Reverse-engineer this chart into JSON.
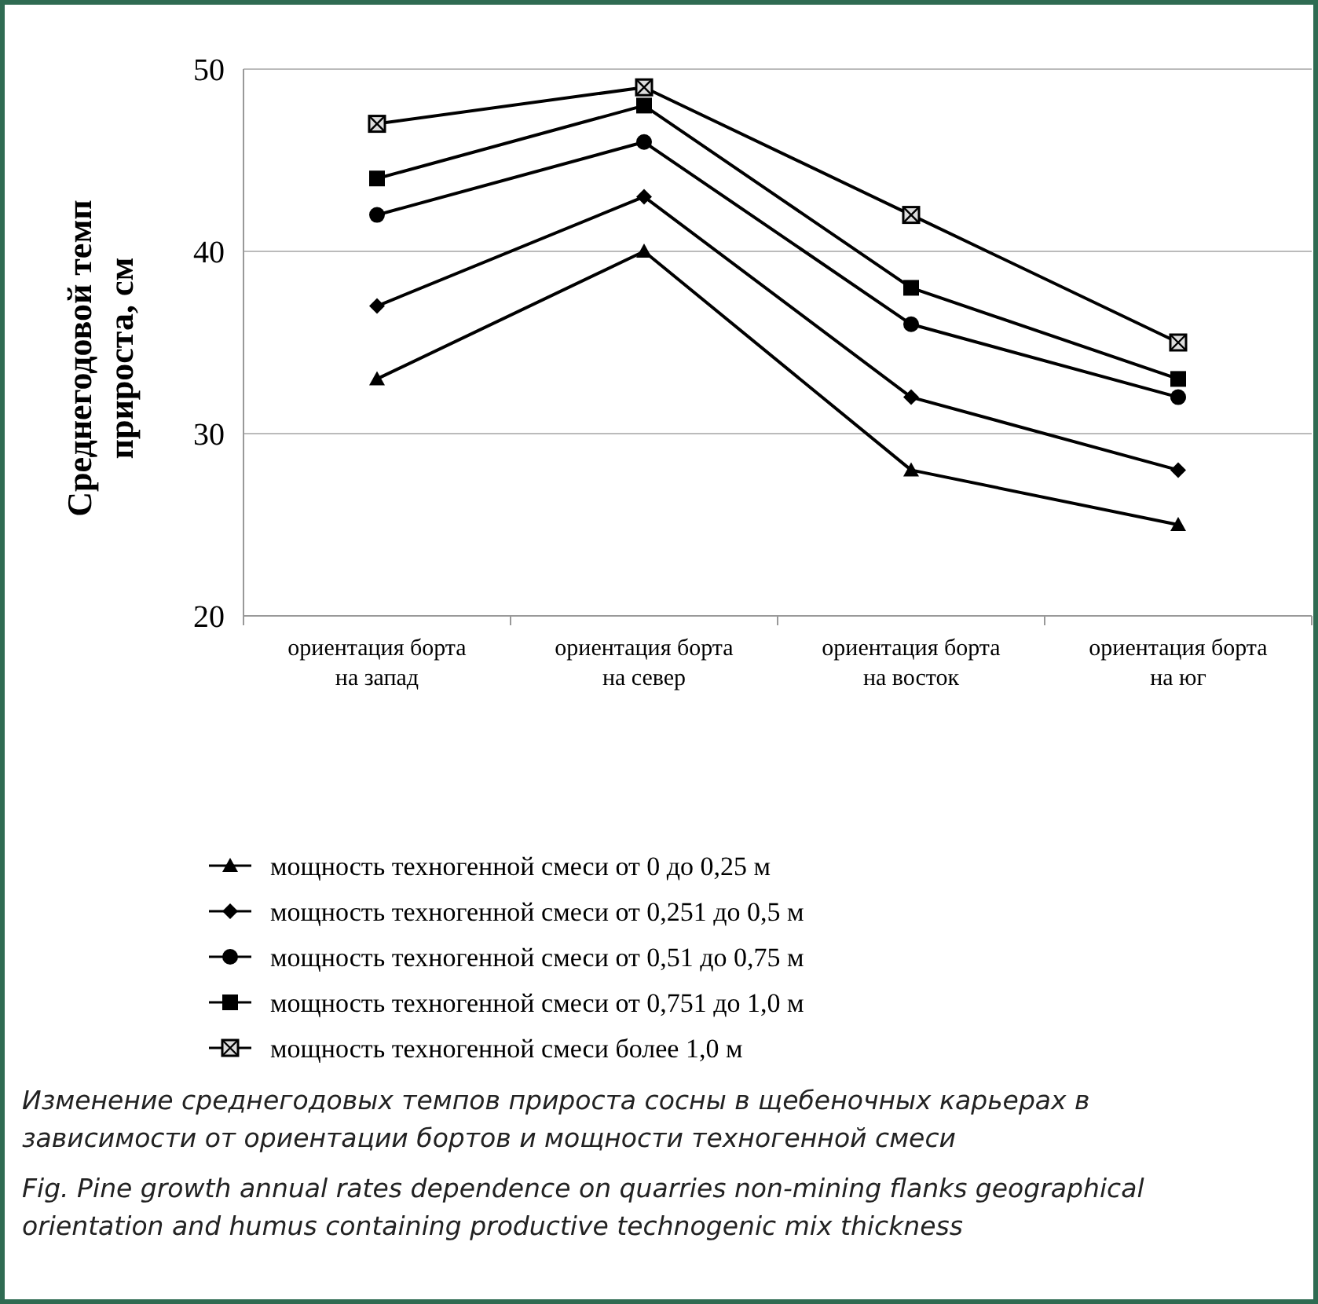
{
  "chart_data": {
    "type": "line",
    "ylabel": "Среднегодовой  темп прироста, см",
    "categories": [
      "ориентация борта на запад",
      "ориентация борта на север",
      "ориентация борта на восток",
      "ориентация борта на юг"
    ],
    "series": [
      {
        "name": "мощность техногенной смеси от 0 до 0,25 м",
        "color": "#000000",
        "marker": "triangle",
        "values": [
          33,
          40,
          28,
          25
        ]
      },
      {
        "name": "мощность техногенной смеси от 0,251 до 0,5 м",
        "color": "#000000",
        "marker": "diamond",
        "values": [
          37,
          43,
          32,
          28
        ]
      },
      {
        "name": "мощность техногенной смеси от 0,51 до 0,75 м",
        "color": "#000000",
        "marker": "circle",
        "values": [
          42,
          46,
          36,
          32
        ]
      },
      {
        "name": "мощность техногенной смеси от 0,751 до 1,0 м",
        "color": "#000000",
        "marker": "square",
        "values": [
          44,
          48,
          38,
          33
        ]
      },
      {
        "name": "мощность техногенной смеси более 1,0 м",
        "color": "#000000",
        "marker": "square",
        "values": [
          47,
          49,
          42,
          35
        ]
      }
    ],
    "ylim": [
      20,
      50
    ],
    "yticks": [
      20,
      30,
      40,
      50
    ],
    "grid": "y",
    "legend": "bottom",
    "line_style": "solid",
    "annotations": [
      "Изменение среднегодовых темпов прироста сосны в щебеночных карьерах в зависимости от ориентации бортов и мощности техногенной смеси",
      "Fig. Pine growth annual rates dependence on quarries non-mining flanks geographical orientation and humus containing productive technogenic mix thickness"
    ]
  }
}
